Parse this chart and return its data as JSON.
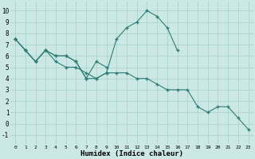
{
  "xlabel": "Humidex (Indice chaleur)",
  "bg_color": "#cce8e4",
  "line_color": "#2e7d78",
  "grid_color": "#aad4cf",
  "xlim": [
    -0.5,
    23.5
  ],
  "ylim": [
    -1.8,
    10.8
  ],
  "xticks": [
    0,
    1,
    2,
    3,
    4,
    5,
    6,
    7,
    8,
    9,
    10,
    11,
    12,
    13,
    14,
    15,
    16,
    17,
    18,
    19,
    20,
    21,
    22,
    23
  ],
  "yticks": [
    -1,
    0,
    1,
    2,
    3,
    4,
    5,
    6,
    7,
    8,
    9,
    10
  ],
  "series": [
    {
      "x": [
        0,
        1,
        2,
        3,
        4,
        5,
        6,
        7,
        8,
        9,
        10,
        11,
        12,
        13,
        14,
        15,
        16
      ],
      "y": [
        7.5,
        6.5,
        5.5,
        6.5,
        6.0,
        6.0,
        5.5,
        4.0,
        4.0,
        4.5,
        7.5,
        8.5,
        9.0,
        10.0,
        9.5,
        8.5,
        6.5
      ]
    },
    {
      "x": [
        0,
        1,
        2,
        3,
        4,
        5,
        6,
        7,
        8,
        9
      ],
      "y": [
        7.5,
        6.5,
        5.5,
        6.5,
        6.0,
        6.0,
        5.5,
        4.0,
        5.5,
        5.0
      ]
    },
    {
      "x": [
        0,
        1,
        2,
        3,
        4,
        5,
        6,
        7,
        8,
        9,
        10,
        11,
        12,
        13,
        14,
        15,
        16,
        17,
        18,
        19,
        20,
        21,
        22,
        23
      ],
      "y": [
        7.5,
        6.5,
        5.5,
        6.5,
        5.5,
        5.0,
        5.0,
        4.5,
        4.0,
        4.5,
        4.5,
        4.5,
        4.0,
        4.0,
        3.5,
        3.0,
        3.0,
        3.0,
        1.5,
        1.0,
        1.5,
        1.5,
        0.5,
        -0.5
      ]
    }
  ]
}
